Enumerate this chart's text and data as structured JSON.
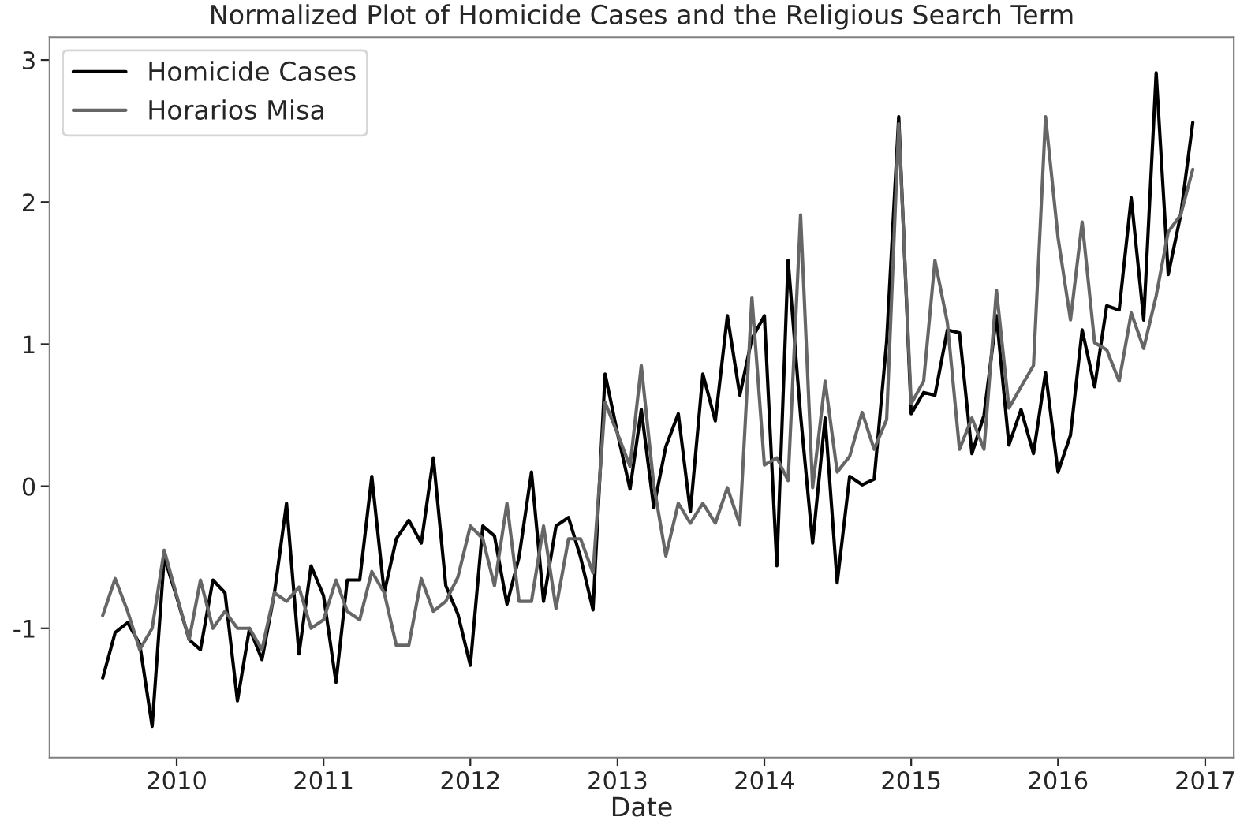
{
  "chart_data": {
    "type": "line",
    "title": "Normalized Plot of Homicide Cases and the Religious Search Term",
    "xlabel": "Date",
    "x": [
      "2009-07",
      "2009-08",
      "2009-09",
      "2009-10",
      "2009-11",
      "2009-12",
      "2010-01",
      "2010-02",
      "2010-03",
      "2010-04",
      "2010-05",
      "2010-06",
      "2010-07",
      "2010-08",
      "2010-09",
      "2010-10",
      "2010-11",
      "2010-12",
      "2011-01",
      "2011-02",
      "2011-03",
      "2011-04",
      "2011-05",
      "2011-06",
      "2011-07",
      "2011-08",
      "2011-09",
      "2011-10",
      "2011-11",
      "2011-12",
      "2012-01",
      "2012-02",
      "2012-03",
      "2012-04",
      "2012-05",
      "2012-06",
      "2012-07",
      "2012-08",
      "2012-09",
      "2012-10",
      "2012-11",
      "2012-12",
      "2013-01",
      "2013-02",
      "2013-03",
      "2013-04",
      "2013-05",
      "2013-06",
      "2013-07",
      "2013-08",
      "2013-09",
      "2013-10",
      "2013-11",
      "2013-12",
      "2014-01",
      "2014-02",
      "2014-03",
      "2014-04",
      "2014-05",
      "2014-06",
      "2014-07",
      "2014-08",
      "2014-09",
      "2014-10",
      "2014-11",
      "2014-12",
      "2015-01",
      "2015-02",
      "2015-03",
      "2015-04",
      "2015-05",
      "2015-06",
      "2015-07",
      "2015-08",
      "2015-09",
      "2015-10",
      "2015-11",
      "2015-12",
      "2016-01",
      "2016-02",
      "2016-03",
      "2016-04",
      "2016-05",
      "2016-06",
      "2016-07",
      "2016-08",
      "2016-09",
      "2016-10",
      "2016-11",
      "2016-12"
    ],
    "series": [
      {
        "name": "Homicide Cases",
        "color": "#000000",
        "values": [
          -1.35,
          -1.03,
          -0.96,
          -1.11,
          -1.69,
          -0.5,
          -0.78,
          -1.08,
          -1.15,
          -0.66,
          -0.75,
          -1.51,
          -1.0,
          -1.22,
          -0.75,
          -0.12,
          -1.18,
          -0.56,
          -0.77,
          -1.38,
          -0.66,
          -0.66,
          0.07,
          -0.75,
          -0.37,
          -0.24,
          -0.4,
          0.2,
          -0.7,
          -0.9,
          -1.26,
          -0.28,
          -0.35,
          -0.83,
          -0.5,
          0.1,
          -0.81,
          -0.28,
          -0.22,
          -0.5,
          -0.87,
          0.79,
          0.37,
          -0.02,
          0.54,
          -0.15,
          0.28,
          0.51,
          -0.18,
          0.79,
          0.46,
          1.2,
          0.64,
          1.04,
          1.2,
          -0.56,
          1.59,
          0.5,
          -0.4,
          0.48,
          -0.68,
          0.07,
          0.01,
          0.05,
          1.02,
          2.6,
          0.51,
          0.66,
          0.64,
          1.1,
          1.08,
          0.23,
          0.5,
          1.2,
          0.29,
          0.54,
          0.23,
          0.8,
          0.1,
          0.36,
          1.1,
          0.7,
          1.27,
          1.24,
          2.03,
          1.17,
          2.91,
          1.49,
          1.91,
          2.56
        ]
      },
      {
        "name": "Horarios Misa",
        "color": "#666666",
        "values": [
          -0.91,
          -0.65,
          -0.88,
          -1.15,
          -1.0,
          -0.45,
          -0.77,
          -1.08,
          -0.66,
          -1.0,
          -0.88,
          -1.0,
          -1.0,
          -1.15,
          -0.75,
          -0.81,
          -0.71,
          -1.0,
          -0.94,
          -0.66,
          -0.88,
          -0.94,
          -0.6,
          -0.75,
          -1.12,
          -1.12,
          -0.65,
          -0.88,
          -0.81,
          -0.64,
          -0.28,
          -0.37,
          -0.7,
          -0.12,
          -0.81,
          -0.81,
          -0.28,
          -0.86,
          -0.37,
          -0.37,
          -0.61,
          0.59,
          0.37,
          0.14,
          0.85,
          0.01,
          -0.49,
          -0.12,
          -0.26,
          -0.12,
          -0.26,
          -0.01,
          -0.27,
          1.33,
          0.15,
          0.2,
          0.04,
          1.91,
          -0.01,
          0.74,
          0.1,
          0.21,
          0.52,
          0.26,
          0.47,
          2.55,
          0.58,
          0.74,
          1.59,
          1.15,
          0.26,
          0.48,
          0.26,
          1.38,
          0.55,
          0.7,
          0.85,
          2.6,
          1.75,
          1.17,
          1.86,
          1.01,
          0.96,
          0.74,
          1.22,
          0.97,
          1.34,
          1.79,
          1.91,
          2.23
        ]
      }
    ],
    "xlim": [
      "2009-02-19",
      "2017-03-13"
    ],
    "xticks": [
      "2010",
      "2011",
      "2012",
      "2013",
      "2014",
      "2015",
      "2016",
      "2017"
    ],
    "ylim": [
      -1.91,
      3.16
    ],
    "yticks": [
      -1,
      0,
      1,
      2,
      3
    ],
    "legend": "top left",
    "grid": false
  }
}
